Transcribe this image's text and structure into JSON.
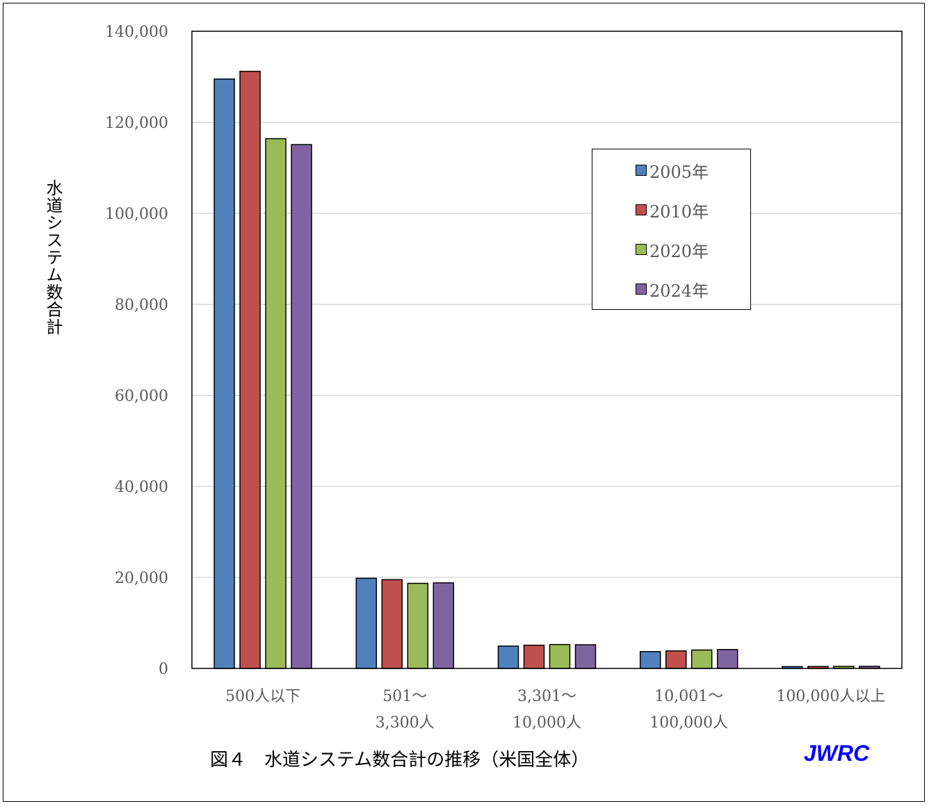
{
  "chart_data": {
    "type": "bar",
    "title": "",
    "xlabel": "",
    "ylabel": "水道システム数合計",
    "ylim": [
      0,
      140000
    ],
    "yticks": [
      "0",
      "20,000",
      "40,000",
      "60,000",
      "80,000",
      "100,000",
      "120,000",
      "140,000"
    ],
    "ytick_values": [
      0,
      20000,
      40000,
      60000,
      80000,
      100000,
      120000,
      140000
    ],
    "categories": [
      [
        "500人以下"
      ],
      [
        "501～",
        "3,300人"
      ],
      [
        "3,301～",
        "10,000人"
      ],
      [
        "10,001～",
        "100,000人"
      ],
      [
        "100,000人以上"
      ]
    ],
    "series": [
      {
        "name": "2005年",
        "color": "#4F81BD",
        "values": [
          129500,
          19800,
          4900,
          3700,
          400
        ]
      },
      {
        "name": "2010年",
        "color": "#C0504D",
        "values": [
          131200,
          19500,
          5100,
          3850,
          420
        ]
      },
      {
        "name": "2020年",
        "color": "#9BBB59",
        "values": [
          116400,
          18700,
          5250,
          4050,
          450
        ]
      },
      {
        "name": "2024年",
        "color": "#8064A2",
        "values": [
          115100,
          18800,
          5200,
          4150,
          460
        ]
      }
    ],
    "grid": true,
    "legend_position": "top-right"
  },
  "caption": "図４　水道システム数合計の推移（米国全体）",
  "brand": "JWRC"
}
